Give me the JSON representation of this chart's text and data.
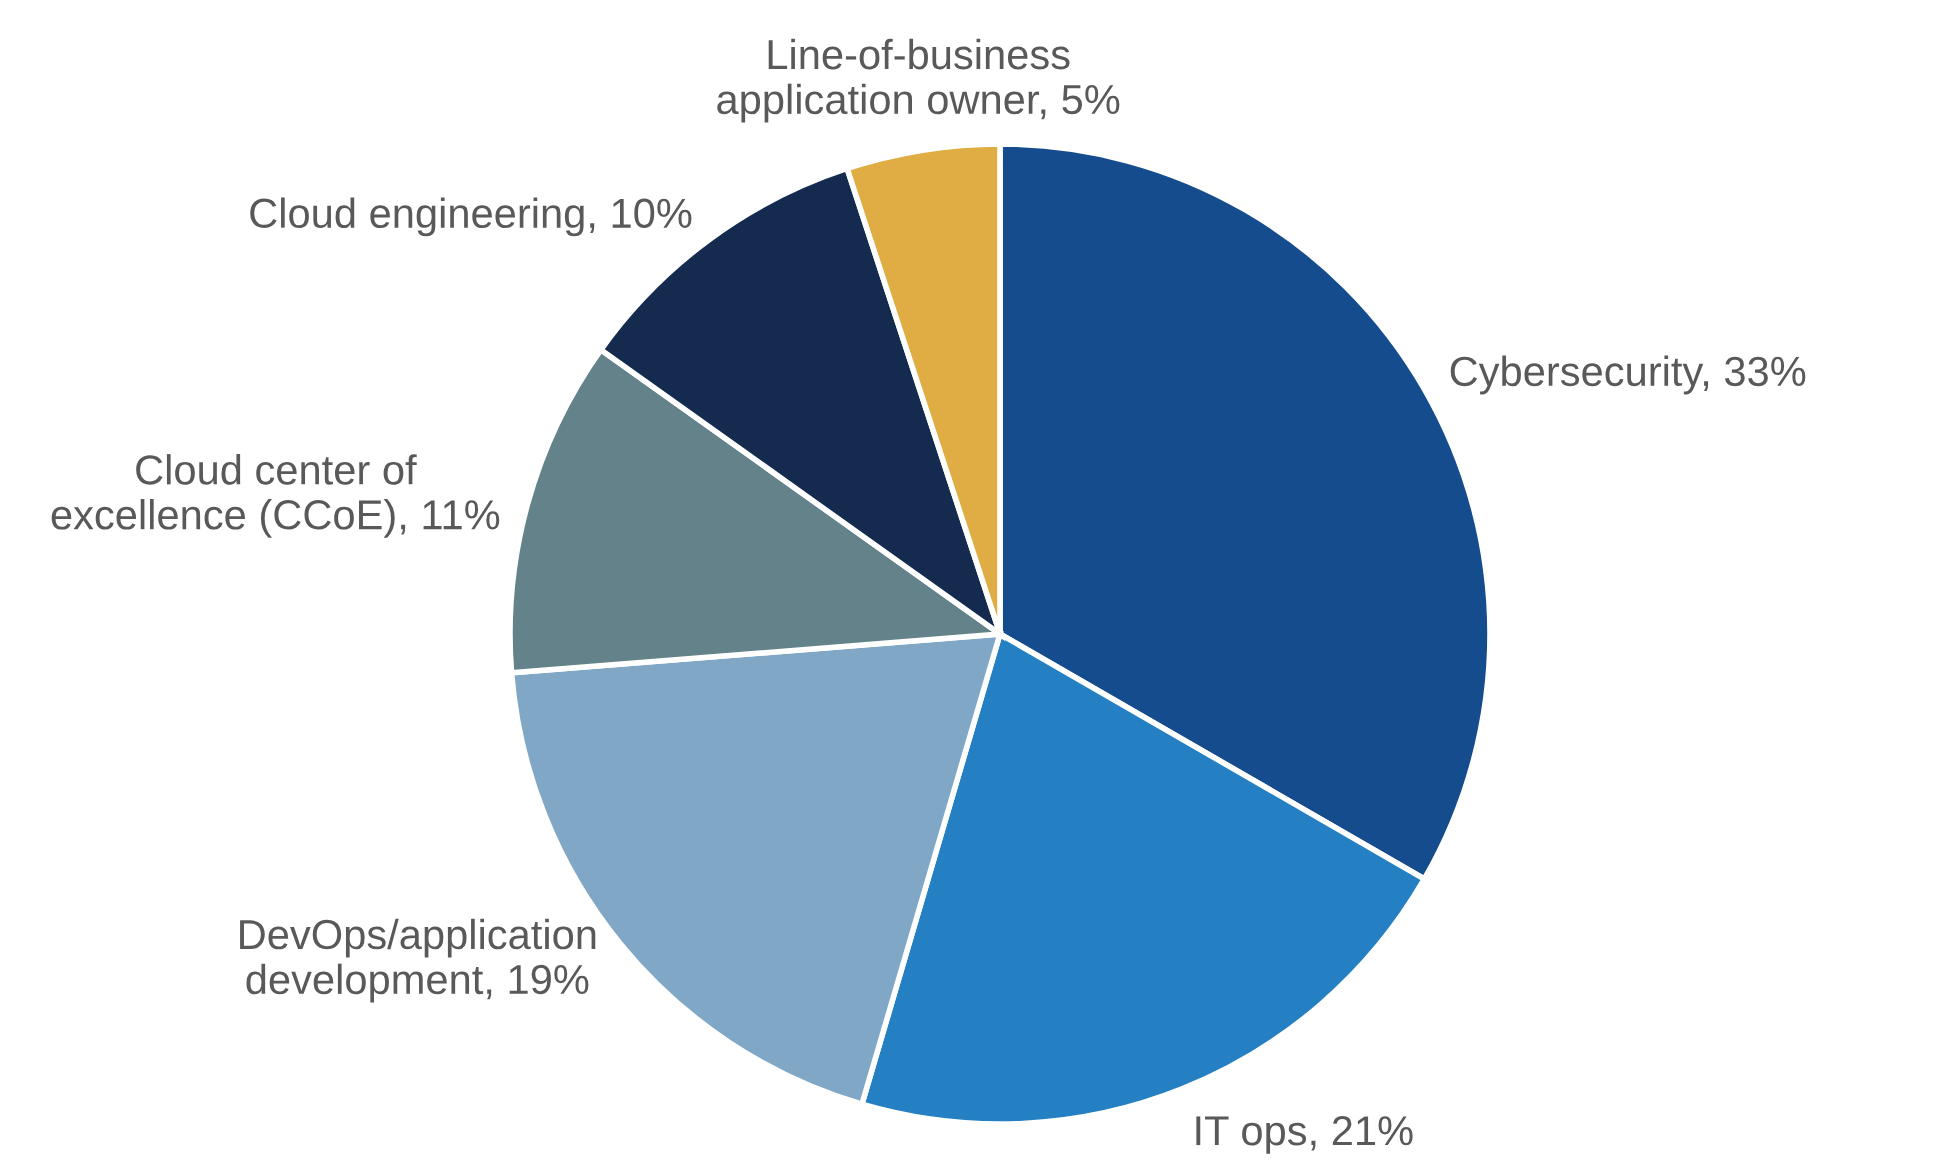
{
  "chart_data": {
    "type": "pie",
    "categories": [
      "Cybersecurity",
      "IT ops",
      "DevOps/application\ndevelopment",
      "Cloud center of\nexcellence (CCoE)",
      "Cloud engineering",
      "Line-of-business\napplication owner"
    ],
    "values": [
      33,
      21,
      19,
      11,
      10,
      5
    ],
    "value_labels": [
      "33%",
      "21%",
      "19%",
      "11%",
      "10%",
      "5%"
    ],
    "colors": [
      "#154c8e",
      "#2580c3",
      "#80a8c6",
      "#64828a",
      "#142a4f",
      "#e0ad45"
    ]
  }
}
